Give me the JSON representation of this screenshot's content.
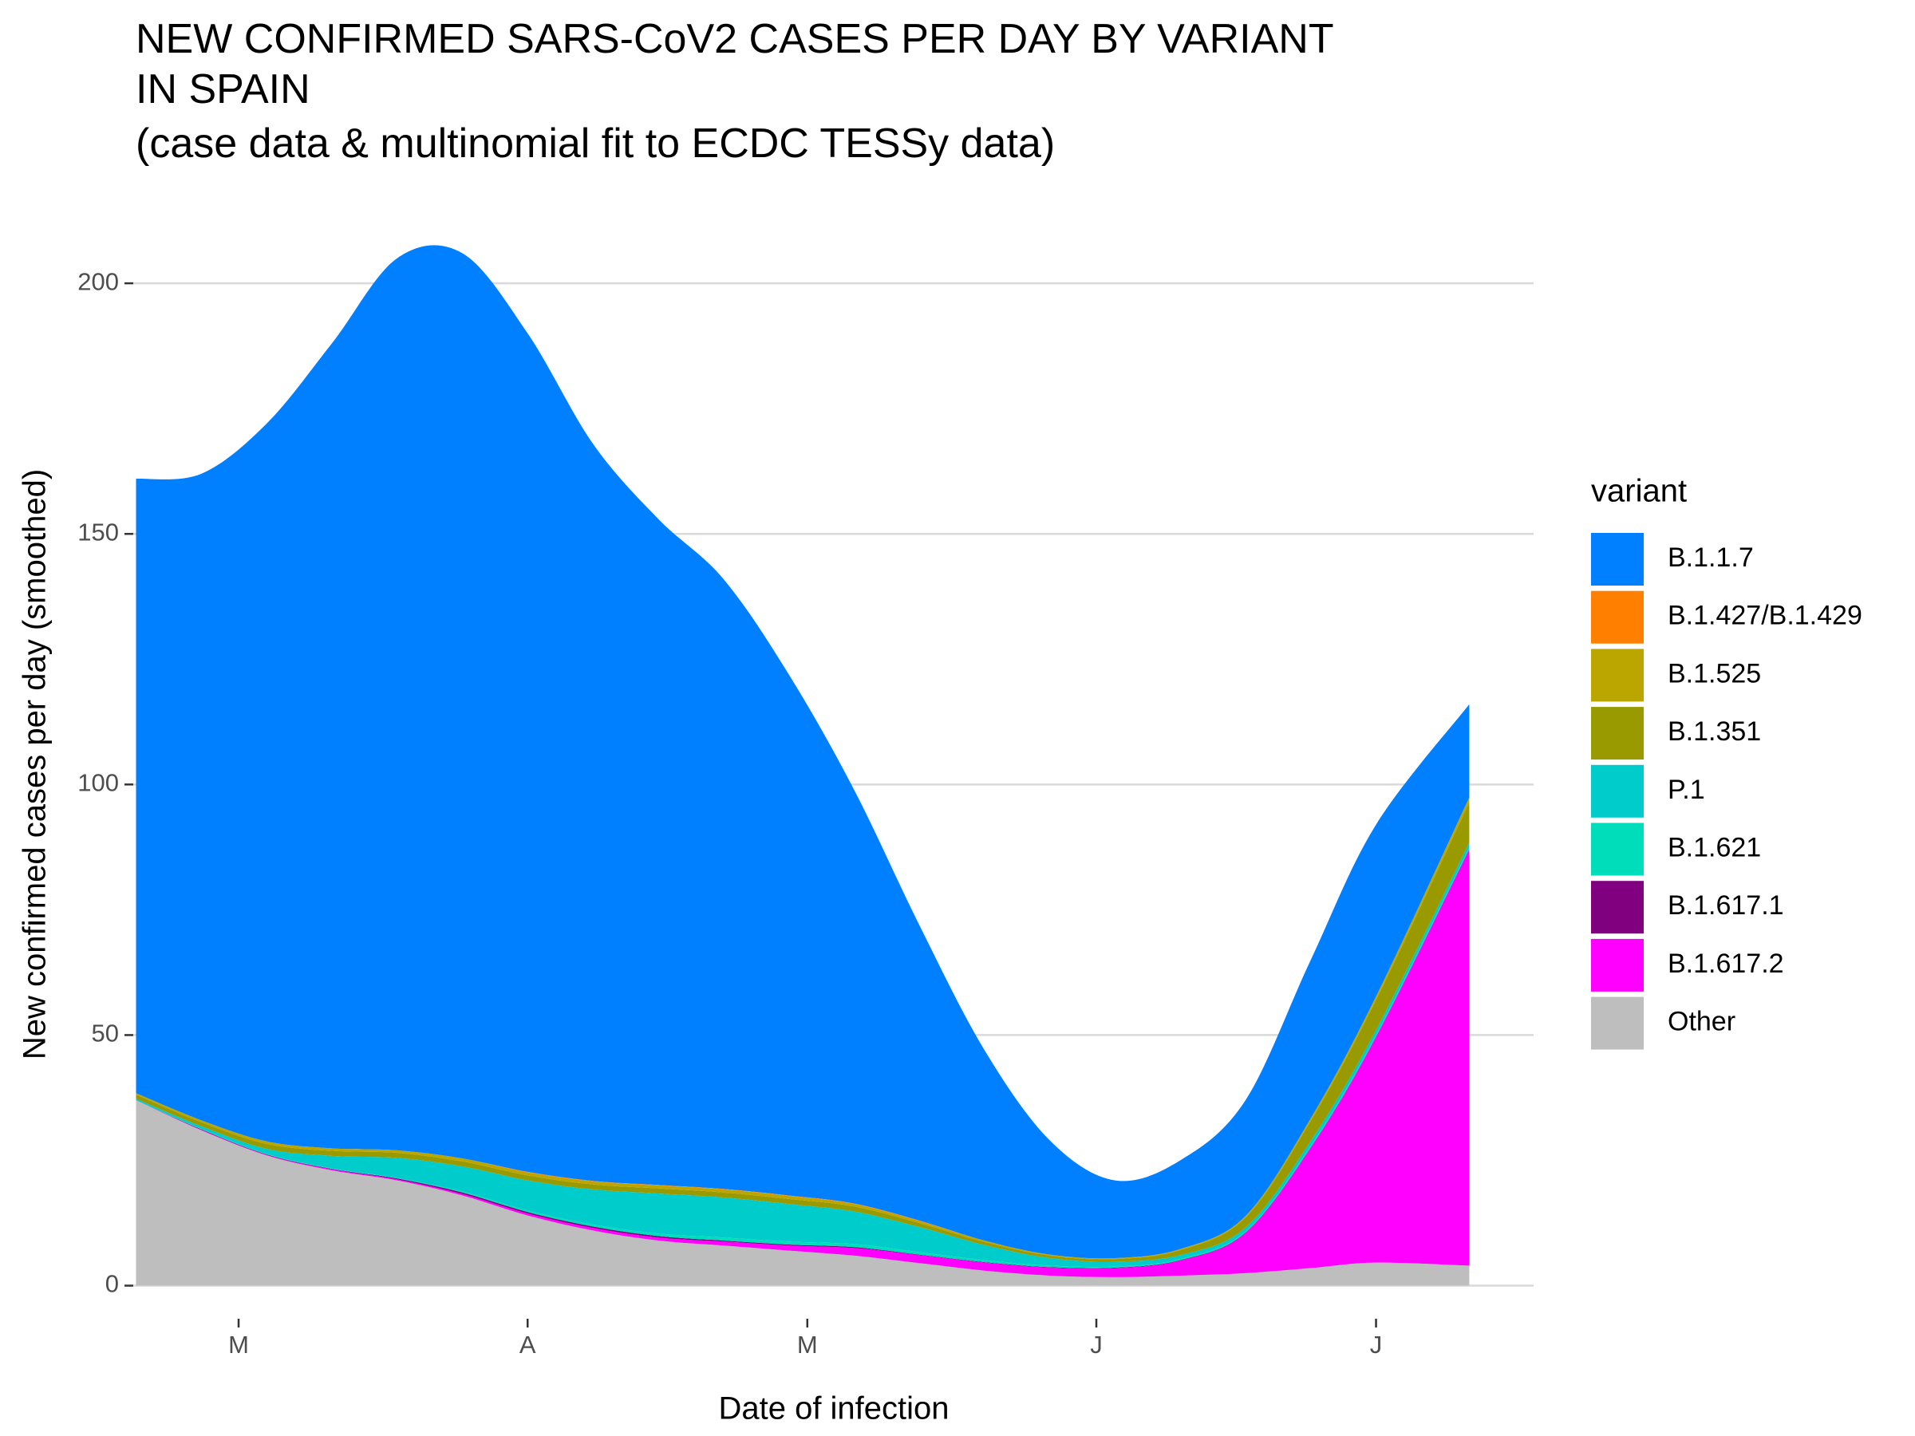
{
  "chart_data": {
    "type": "stacked-area",
    "title": [
      "NEW CONFIRMED SARS-CoV2 CASES PER DAY BY VARIANT",
      "IN SPAIN"
    ],
    "subtitle": "(case data & multinomial fit to ECDC TESSy data)",
    "x_label": "Date of infection",
    "y_label": "New confirmed cases per day (smoothed)",
    "legend_title": "variant",
    "legend_position": "right",
    "grid": true,
    "x": [
      49,
      56,
      63,
      70,
      77,
      84,
      91,
      98,
      105,
      112,
      119,
      126,
      133,
      140,
      147,
      154,
      161,
      168,
      175,
      182,
      192
    ],
    "xlim": [
      48.7,
      198.9
    ],
    "xticks": [
      {
        "value": 60,
        "label": "M"
      },
      {
        "value": 91,
        "label": "A"
      },
      {
        "value": 121,
        "label": "M"
      },
      {
        "value": 152,
        "label": "J"
      },
      {
        "value": 182,
        "label": "J"
      }
    ],
    "ylim": [
      -6.6,
      211
    ],
    "yticks": [
      0,
      50,
      100,
      150,
      200
    ],
    "series": [
      {
        "name": "B.1.1.7",
        "color": "#0080FF",
        "values": [
          122.6,
          129,
          143.2,
          160.6,
          178,
          180.6,
          167.3,
          147.1,
          132.9,
          121.7,
          104,
          82.6,
          59,
          38,
          22.8,
          15.5,
          17.7,
          23.1,
          31.6,
          34.3,
          18.6
        ]
      },
      {
        "name": "B.1.427/B.1.429",
        "color": "#FF8000",
        "values": [
          0,
          0,
          0,
          0,
          0,
          0,
          0.1,
          0.1,
          0.1,
          0.1,
          0.1,
          0.1,
          0.1,
          0,
          0,
          0,
          0,
          0,
          0,
          0,
          0
        ]
      },
      {
        "name": "B.1.525",
        "color": "#BBA600",
        "values": [
          0.3,
          0.4,
          0.5,
          0.5,
          0.5,
          0.6,
          0.6,
          0.6,
          0.6,
          0.6,
          0.6,
          0.5,
          0.4,
          0.3,
          0.2,
          0.2,
          0.2,
          0.3,
          0.5,
          0.7,
          1
        ]
      },
      {
        "name": "B.1.351",
        "color": "#999900",
        "values": [
          0.8,
          0.8,
          1,
          1,
          1,
          1,
          1,
          1,
          1,
          1,
          1,
          1,
          0.8,
          0.6,
          0.5,
          0.5,
          1,
          2,
          4,
          6,
          8
        ]
      },
      {
        "name": "P.1",
        "color": "#00CCCC",
        "values": [
          0.3,
          0.5,
          1,
          2.5,
          4,
          5,
          6,
          7,
          8,
          8,
          7.5,
          6.5,
          5,
          3,
          1.5,
          1,
          0.8,
          0.8,
          1,
          1,
          1
        ]
      },
      {
        "name": "B.1.621",
        "color": "#00DDBB",
        "values": [
          0,
          0.1,
          0.1,
          0.1,
          0.1,
          0.2,
          0.3,
          0.4,
          0.5,
          0.6,
          0.6,
          0.6,
          0.5,
          0.4,
          0.3,
          0.2,
          0.2,
          0.2,
          0.3,
          0.3,
          0.3
        ]
      },
      {
        "name": "B.1.617.1",
        "color": "#800080",
        "values": [
          0,
          0.1,
          0.1,
          0.1,
          0.2,
          0.3,
          0.3,
          0.3,
          0.3,
          0.2,
          0.2,
          0.2,
          0.1,
          0.1,
          0.1,
          0.1,
          0.1,
          0.1,
          0.1,
          0.1,
          0.1
        ]
      },
      {
        "name": "B.1.617.2",
        "color": "#FF00FF",
        "values": [
          0,
          0.1,
          0.1,
          0.2,
          0.2,
          0.3,
          0.4,
          0.5,
          0.6,
          0.8,
          1,
          1.5,
          1.6,
          1.6,
          1.6,
          1.8,
          3,
          8,
          24,
          45,
          83
        ]
      },
      {
        "name": "Other",
        "color": "#BEBEBE",
        "values": [
          37,
          31,
          26,
          23,
          21,
          18,
          14,
          11,
          9,
          8,
          7,
          6,
          4.5,
          3,
          2,
          1.7,
          2,
          2.5,
          3.5,
          4.6,
          4
        ]
      }
    ]
  }
}
